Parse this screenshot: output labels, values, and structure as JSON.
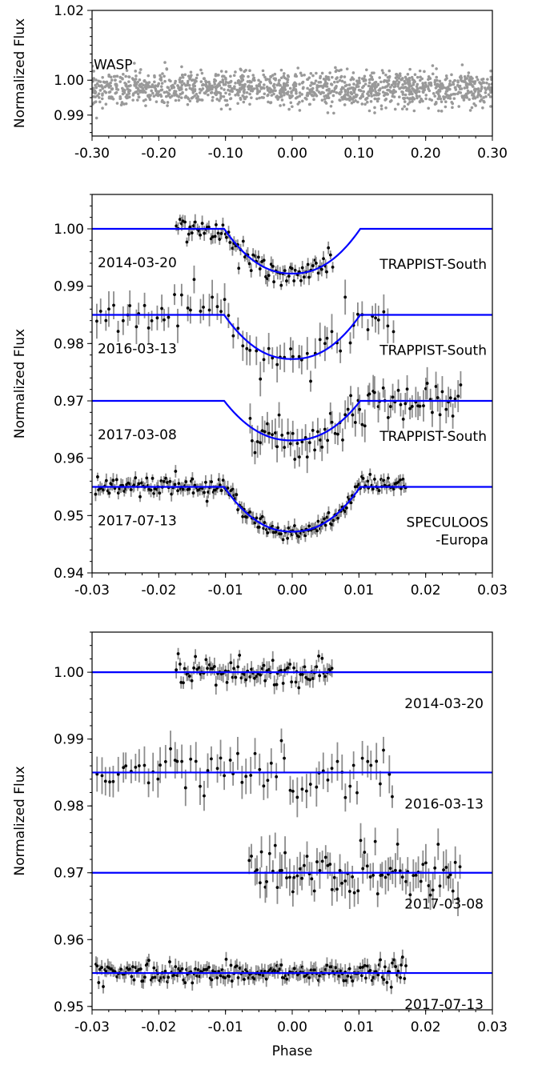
{
  "chart_data": [
    {
      "type": "scatter",
      "panel": "top",
      "ylabel": "Normalized Flux",
      "xlabel": "",
      "xlim": [
        -0.3,
        0.3
      ],
      "ylim": [
        0.984,
        1.02
      ],
      "yticks": [
        0.99,
        1.0,
        1.02
      ],
      "ytick_labels": [
        "0.99",
        "1.00",
        "1.02"
      ],
      "xticks": [
        -0.3,
        -0.2,
        -0.1,
        0.0,
        0.1,
        0.2,
        0.3
      ],
      "xtick_labels": [
        "-0.30",
        "-0.20",
        "-0.10",
        "0.00",
        "0.10",
        "0.20",
        "0.30"
      ],
      "annotations": [
        {
          "text": "WASP",
          "x": -0.3,
          "y": 1.0045
        }
      ],
      "series": [
        {
          "marker_color": "#999999",
          "center": 0.9975,
          "scatter": 0.0024,
          "n_points": 1400
        }
      ]
    },
    {
      "type": "line",
      "panel": "middle",
      "ylabel": "Normalized Flux",
      "xlabel": "",
      "xlim": [
        -0.03,
        0.03
      ],
      "ylim": [
        0.94,
        1.006
      ],
      "yticks": [
        0.94,
        0.95,
        0.96,
        0.97,
        0.98,
        0.99,
        1.0
      ],
      "ytick_labels": [
        "0.94",
        "0.95",
        "0.96",
        "0.97",
        "0.98",
        "0.99",
        "1.00"
      ],
      "xticks": [
        -0.03,
        -0.02,
        -0.01,
        0.0,
        0.01,
        0.02,
        0.03
      ],
      "xtick_labels": [
        "-0.03",
        "-0.02",
        "-0.01",
        "0.00",
        "0.01",
        "0.02",
        "0.03"
      ],
      "line_color": "#0000ff",
      "transit_half_width": 0.0102,
      "series": [
        {
          "date": "2014-03-20",
          "instrument": "TRAPPIST-South",
          "baseline": 1.0,
          "depth": 0.0078,
          "data_range": [
            -0.0175,
            0.0062
          ],
          "n_points": 90,
          "noise": 0.0011,
          "errbar": 0.0011
        },
        {
          "date": "2016-03-13",
          "instrument": "TRAPPIST-South",
          "baseline": 0.985,
          "depth": 0.0077,
          "data_range": [
            -0.0295,
            0.0155
          ],
          "n_points": 70,
          "noise": 0.0019,
          "errbar": 0.0024
        },
        {
          "date": "2017-03-08",
          "instrument": "TRAPPIST-South",
          "baseline": 0.97,
          "depth": 0.0069,
          "data_range": [
            -0.0065,
            0.0255
          ],
          "n_points": 85,
          "noise": 0.0017,
          "errbar": 0.0022
        },
        {
          "date": "2017-07-13",
          "instrument": "SPECULOOS",
          "instrument_line2": "-Europa",
          "baseline": 0.955,
          "depth": 0.0078,
          "data_range": [
            -0.0295,
            0.0172
          ],
          "n_points": 210,
          "noise": 0.0008,
          "errbar": 0.001
        }
      ]
    },
    {
      "type": "line",
      "panel": "bottom",
      "ylabel": "Normalized Flux",
      "xlabel": "Phase",
      "xlim": [
        -0.03,
        0.03
      ],
      "ylim": [
        0.9495,
        1.006
      ],
      "yticks": [
        0.95,
        0.96,
        0.97,
        0.98,
        0.99,
        1.0
      ],
      "ytick_labels": [
        "0.95",
        "0.96",
        "0.97",
        "0.98",
        "0.99",
        "1.00"
      ],
      "xticks": [
        -0.03,
        -0.02,
        -0.01,
        0.0,
        0.01,
        0.02,
        0.03
      ],
      "xtick_labels": [
        "-0.03",
        "-0.02",
        "-0.01",
        "0.00",
        "0.01",
        "0.02",
        "0.03"
      ],
      "line_color": "#0000ff",
      "series": [
        {
          "date": "2014-03-20",
          "baseline": 1.0
        },
        {
          "date": "2016-03-13",
          "baseline": 0.985
        },
        {
          "date": "2017-03-08",
          "baseline": 0.97
        },
        {
          "date": "2017-07-13",
          "baseline": 0.955
        }
      ]
    }
  ]
}
